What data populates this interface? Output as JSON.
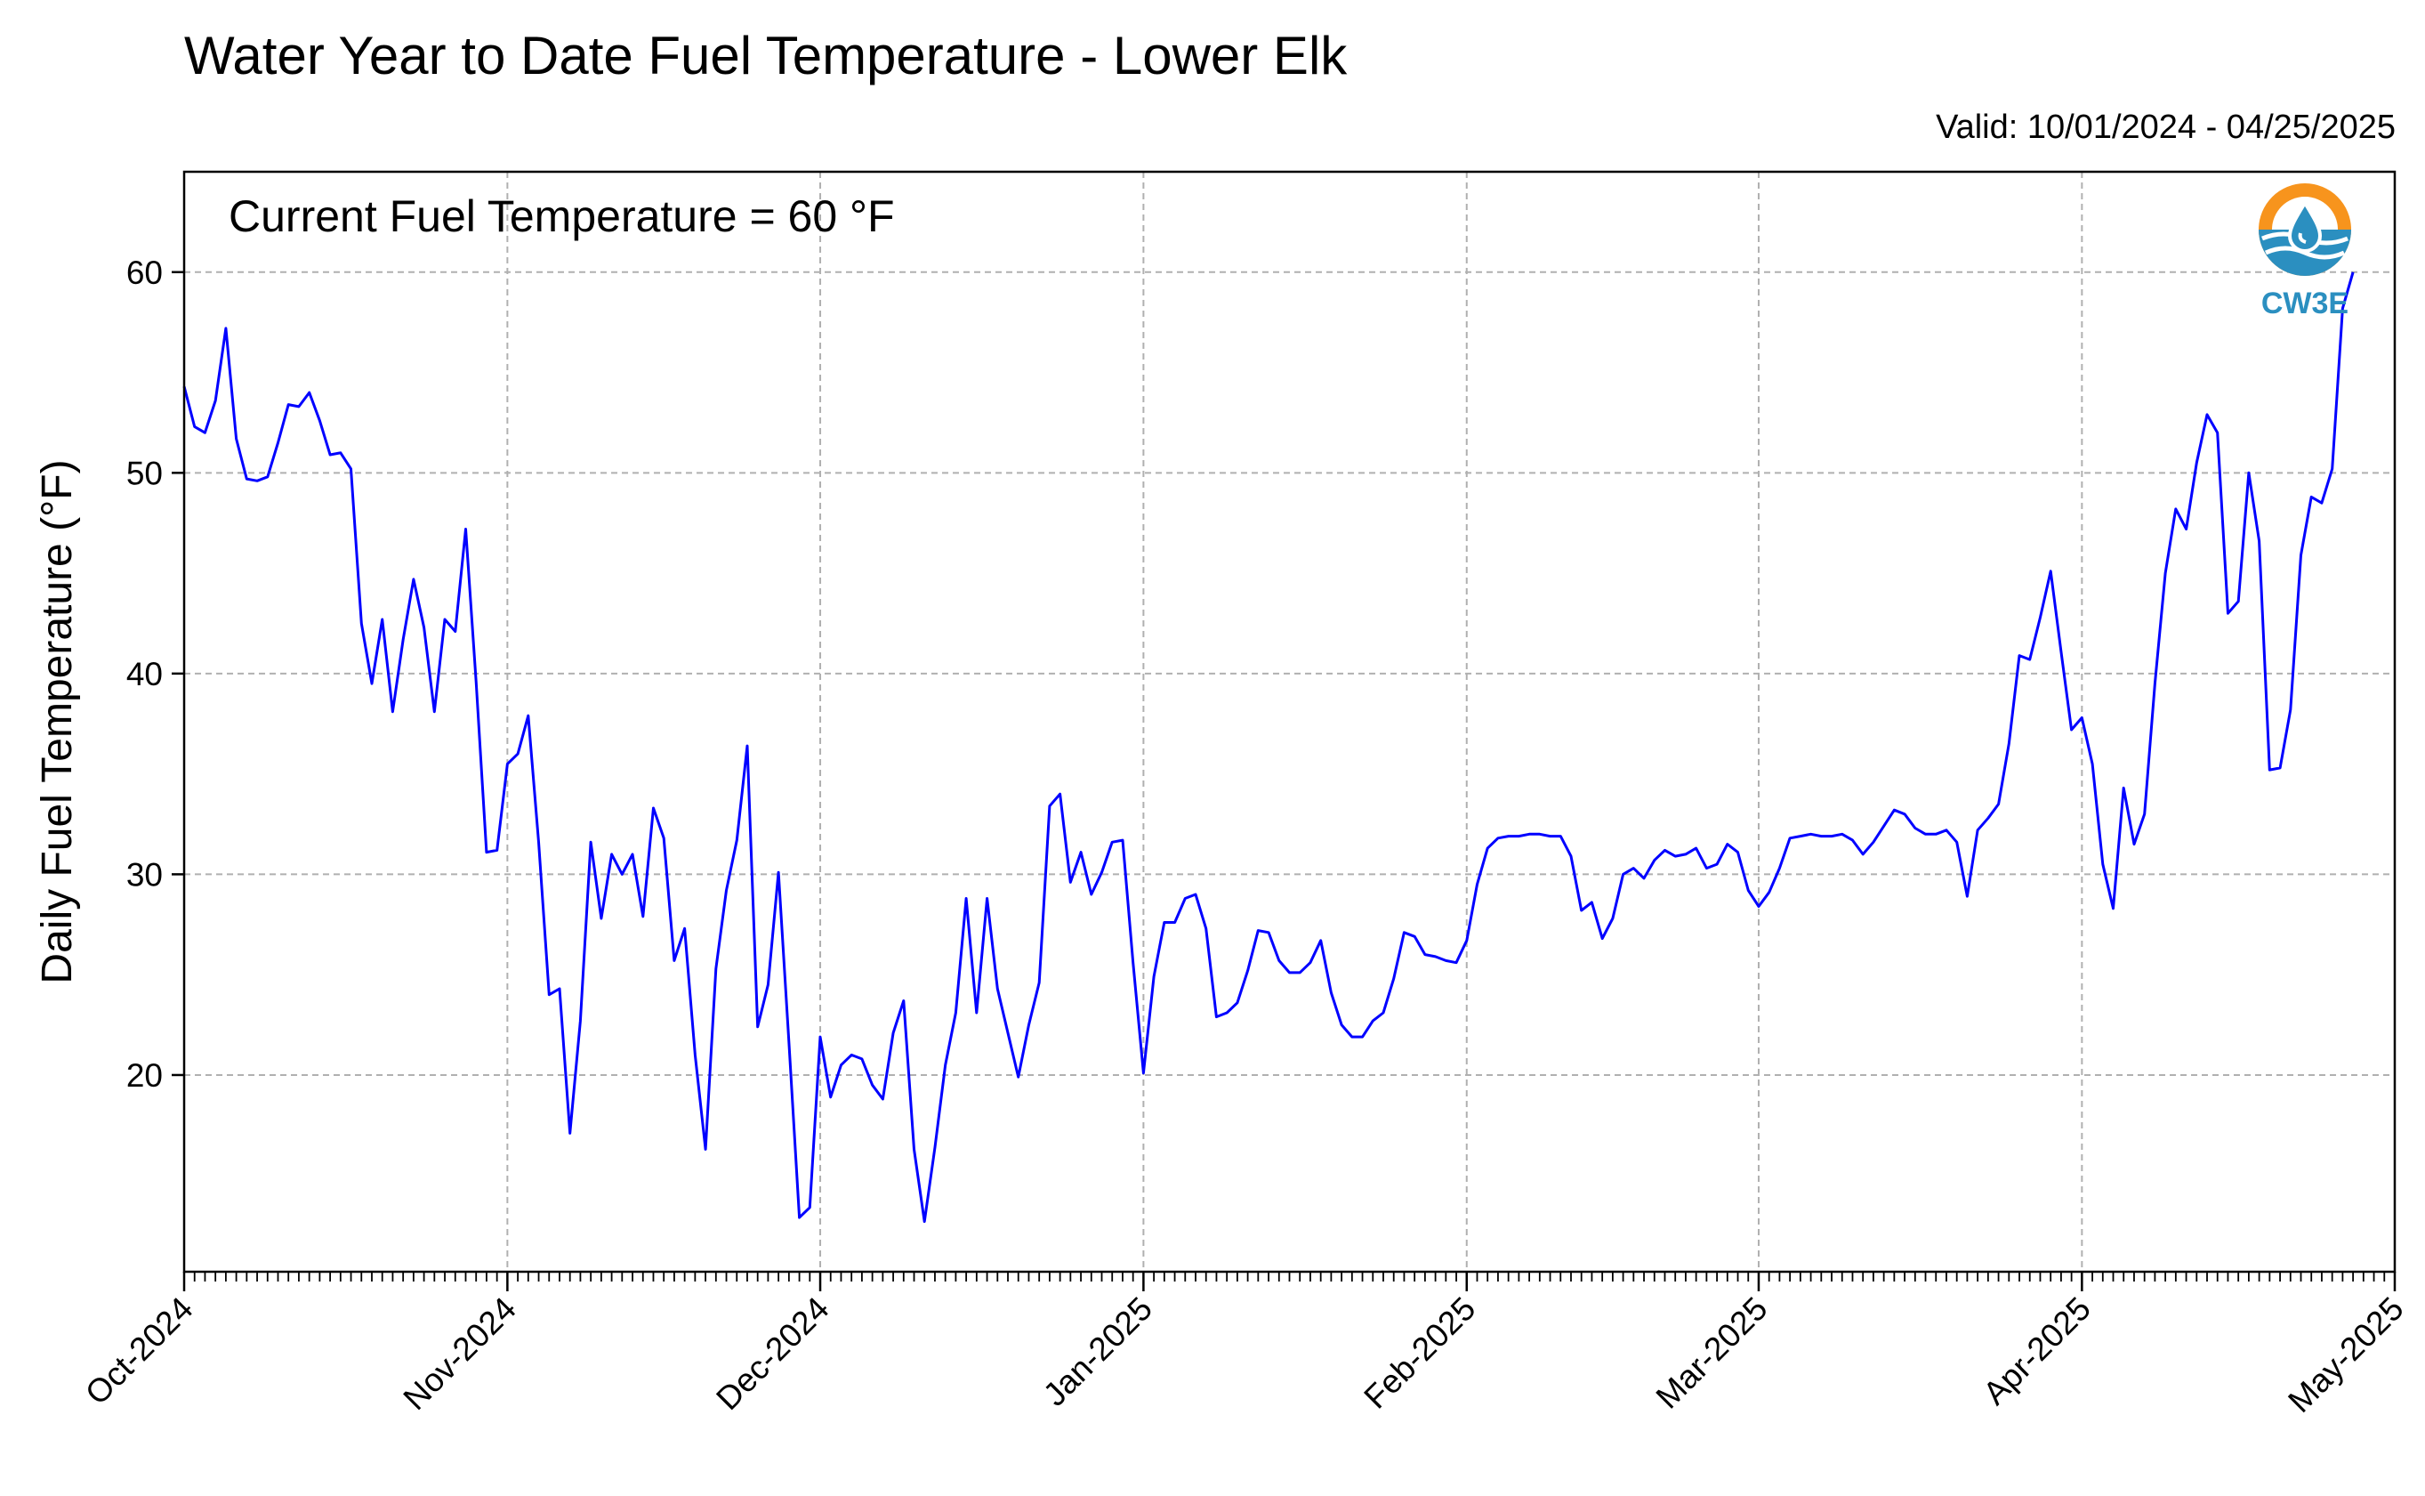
{
  "header": {
    "title": "Water Year to Date Fuel Temperature - Lower Elk",
    "valid": "Valid: 10/01/2024 - 04/25/2025"
  },
  "logo": {
    "text": "CW3E",
    "icon": "water-drop-sun-icon",
    "color_orange": "#f7941d",
    "color_blue": "#2b8fc0"
  },
  "chart_data": {
    "type": "line",
    "title": "Water Year to Date Fuel Temperature - Lower Elk",
    "ylabel": "Daily Fuel Temperature (°F)",
    "xlabel": "",
    "annotation": "Current Fuel Temperature = 60 °F",
    "xlim": [
      "2024-10-01",
      "2025-05-01"
    ],
    "ylim": [
      10.2,
      65
    ],
    "yticks": [
      20,
      30,
      40,
      50,
      60
    ],
    "xticks": [
      {
        "date": "2024-10-01",
        "label": "Oct-2024"
      },
      {
        "date": "2024-11-01",
        "label": "Nov-2024"
      },
      {
        "date": "2024-12-01",
        "label": "Dec-2024"
      },
      {
        "date": "2025-01-01",
        "label": "Jan-2025"
      },
      {
        "date": "2025-02-01",
        "label": "Feb-2025"
      },
      {
        "date": "2025-03-01",
        "label": "Mar-2025"
      },
      {
        "date": "2025-04-01",
        "label": "Apr-2025"
      },
      {
        "date": "2025-05-01",
        "label": "May-2025"
      }
    ],
    "grid": true,
    "line_color": "#0000ff",
    "series": [
      {
        "x_start": "2024-10-01",
        "x_step_days": 1,
        "values": [
          54.3,
          52.3,
          52.0,
          53.6,
          57.2,
          51.7,
          49.7,
          49.6,
          49.8,
          51.5,
          53.4,
          53.3,
          54.0,
          52.6,
          50.9,
          51.0,
          50.2,
          42.5,
          39.5,
          42.7,
          38.1,
          41.7,
          44.7,
          42.3,
          38.1,
          42.7,
          42.1,
          47.2,
          39.6,
          31.1,
          31.2,
          35.5,
          36.0,
          37.9,
          31.6,
          24.0,
          24.3,
          17.1,
          22.7,
          31.6,
          27.8,
          31.0,
          30.0,
          31.0,
          27.9,
          33.3,
          31.8,
          25.7,
          27.3,
          21.0,
          16.3,
          25.3,
          29.2,
          31.7,
          36.4,
          22.4,
          24.5,
          30.1,
          21.6,
          12.9,
          13.4,
          21.9,
          18.9,
          20.5,
          21.0,
          20.8,
          19.5,
          18.8,
          22.1,
          23.7,
          16.3,
          12.7,
          16.4,
          20.5,
          23.1,
          28.8,
          23.1,
          28.8,
          24.3,
          22.1,
          19.9,
          22.5,
          24.6,
          33.4,
          34.0,
          29.6,
          31.1,
          29.0,
          30.1,
          31.6,
          31.7,
          25.6,
          20.1,
          24.9,
          27.6,
          27.6,
          28.8,
          29.0,
          27.3,
          22.9,
          23.1,
          23.6,
          25.2,
          27.2,
          27.1,
          25.7,
          25.1,
          25.1,
          25.6,
          26.7,
          24.1,
          22.5,
          21.9,
          21.9,
          22.7,
          23.1,
          24.8,
          27.1,
          26.9,
          26.0,
          25.9,
          25.7,
          25.6,
          26.7,
          29.5,
          31.3,
          31.8,
          31.9,
          31.9,
          32.0,
          32.0,
          31.9,
          31.9,
          30.9,
          28.2,
          28.6,
          26.8,
          27.8,
          30.0,
          30.3,
          29.8,
          30.7,
          31.2,
          30.9,
          31.0,
          31.3,
          30.3,
          30.5,
          31.5,
          31.1,
          29.2,
          28.4,
          29.1,
          30.3,
          31.8,
          31.9,
          32.0,
          31.9,
          31.9,
          32.0,
          31.7,
          31.0,
          31.6,
          32.4,
          33.2,
          33.0,
          32.3,
          32.0,
          32.0,
          32.2,
          31.6,
          28.9,
          32.2,
          32.8,
          33.5,
          36.5,
          40.9,
          40.7,
          42.8,
          45.1,
          41.1,
          37.2,
          37.8,
          35.5,
          30.5,
          28.3,
          34.3,
          31.5,
          33.0,
          39.5,
          45.0,
          48.2,
          47.2,
          50.5,
          52.9,
          52.0,
          43.0,
          43.6,
          50.0,
          46.6,
          35.2,
          35.3,
          38.2,
          45.9,
          48.8,
          48.5,
          50.2,
          58.2,
          60.0
        ]
      }
    ]
  }
}
